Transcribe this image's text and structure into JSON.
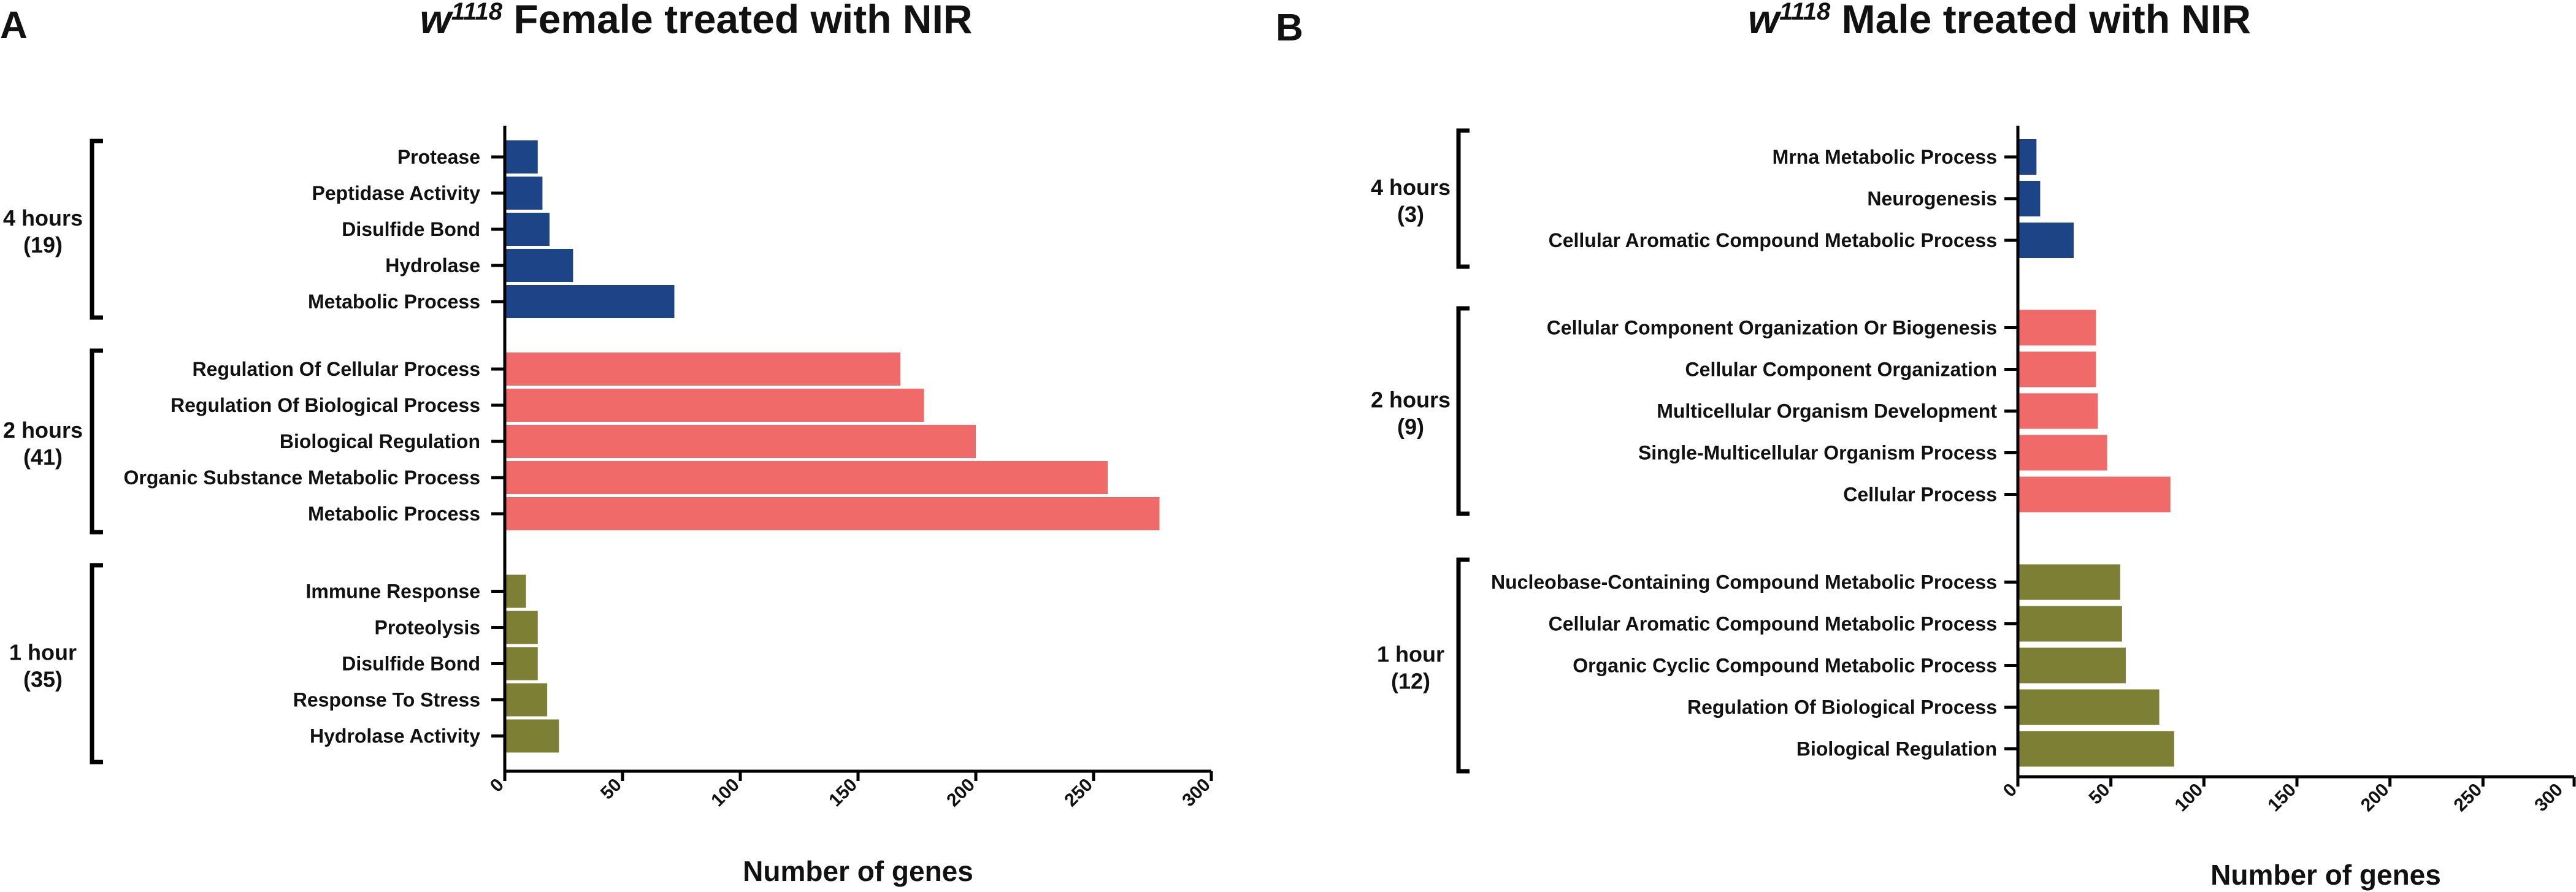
{
  "chart_data": [
    {
      "type": "bar",
      "orientation": "horizontal",
      "panel_letter": "A",
      "title": {
        "strain": "w",
        "superscript": "1118",
        "rest": " Female treated with NIR"
      },
      "xlabel": "Number of genes",
      "ylabel": "",
      "xlim": [
        0,
        300
      ],
      "xticks": [
        0,
        50,
        100,
        150,
        200,
        250,
        300
      ],
      "groups": [
        {
          "name": "4 hours",
          "count_label": "(19)",
          "color": "#1e4488",
          "categories": [
            "Protease",
            "Peptidase Activity",
            "Disulfide Bond",
            "Hydrolase",
            "Metabolic Process"
          ],
          "values": [
            14,
            16,
            19,
            29,
            72
          ]
        },
        {
          "name": "2 hours",
          "count_label": "(41)",
          "color": "#f06a6a",
          "categories": [
            "Regulation Of Cellular Process",
            "Regulation Of Biological Process",
            "Biological Regulation",
            "Organic Substance Metabolic Process",
            "Metabolic Process"
          ],
          "values": [
            168,
            178,
            200,
            256,
            278
          ]
        },
        {
          "name": "1 hour",
          "count_label": "(35)",
          "color": "#7d8034",
          "categories": [
            "Immune Response",
            "Proteolysis",
            "Disulfide Bond",
            "Response To Stress",
            "Hydrolase Activity"
          ],
          "values": [
            9,
            14,
            14,
            18,
            23
          ]
        }
      ]
    },
    {
      "type": "bar",
      "orientation": "horizontal",
      "panel_letter": "B",
      "title": {
        "strain": "w",
        "superscript": "1118",
        "rest": " Male treated with NIR"
      },
      "xlabel": "Number of genes",
      "ylabel": "",
      "xlim": [
        0,
        300
      ],
      "xticks": [
        0,
        50,
        100,
        150,
        200,
        250,
        300
      ],
      "groups": [
        {
          "name": "4 hours",
          "count_label": "(3)",
          "color": "#1e4488",
          "categories": [
            "Mrna Metabolic Process",
            "Neurogenesis",
            "Cellular Aromatic Compound Metabolic Process"
          ],
          "values": [
            10,
            12,
            30
          ]
        },
        {
          "name": "2 hours",
          "count_label": "(9)",
          "color": "#f06a6a",
          "categories": [
            "Cellular Component Organization Or Biogenesis",
            "Cellular Component Organization",
            "Multicellular Organism Development",
            "Single-Multicellular Organism Process",
            "Cellular Process"
          ],
          "values": [
            42,
            42,
            43,
            48,
            82
          ]
        },
        {
          "name": "1 hour",
          "count_label": "(12)",
          "color": "#7d8034",
          "categories": [
            "Nucleobase-Containing Compound Metabolic Process",
            "Cellular Aromatic Compound Metabolic Process",
            "Organic Cyclic Compound Metabolic Process",
            "Regulation Of Biological Process",
            "Biological Regulation"
          ],
          "values": [
            55,
            56,
            58,
            76,
            84
          ]
        }
      ]
    }
  ]
}
